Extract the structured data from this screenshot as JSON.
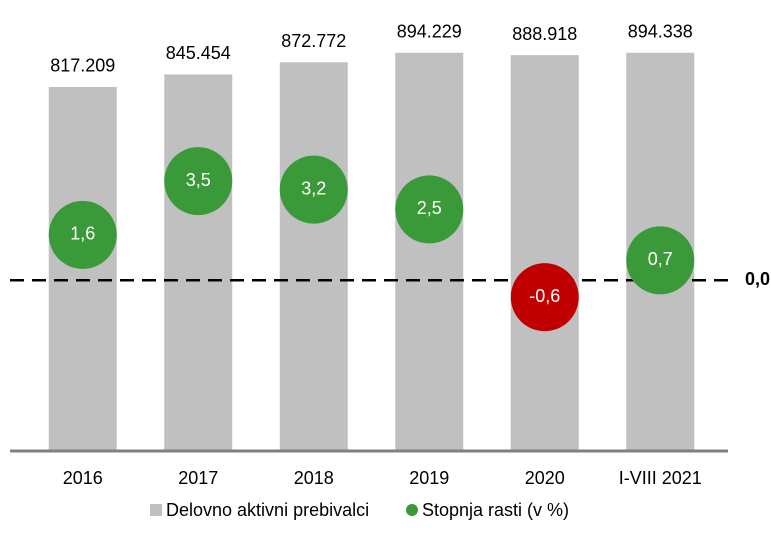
{
  "chart_data": {
    "type": "bar",
    "categories": [
      "2016",
      "2017",
      "2018",
      "2019",
      "2020",
      "I-VIII 2021"
    ],
    "series": [
      {
        "name": "Delovno aktivni prebivalci",
        "color": "#c0c0c0",
        "values": [
          817209,
          845454,
          872772,
          894229,
          888918,
          894338
        ],
        "value_labels": [
          "817.209",
          "845.454",
          "872.772",
          "894.229",
          "888.918",
          "894.338"
        ]
      },
      {
        "name": "Stopnja rasti (v %)",
        "type": "bubble",
        "axis": "y2",
        "color": "#3a9a3a",
        "colors": [
          "#3a9a3a",
          "#3a9a3a",
          "#3a9a3a",
          "#3a9a3a",
          "#c00000",
          "#3a9a3a"
        ],
        "values": [
          1.6,
          3.5,
          3.2,
          2.5,
          -0.6,
          0.7
        ],
        "value_labels": [
          "1,6",
          "3,5",
          "3,2",
          "2,5",
          "-0,6",
          "0,7"
        ]
      }
    ],
    "ylim": [
      0,
      1013000
    ],
    "y2lim": [
      -6,
      9.9
    ],
    "y2ticks": [
      {
        "value": 0,
        "label": "0,0"
      }
    ]
  }
}
